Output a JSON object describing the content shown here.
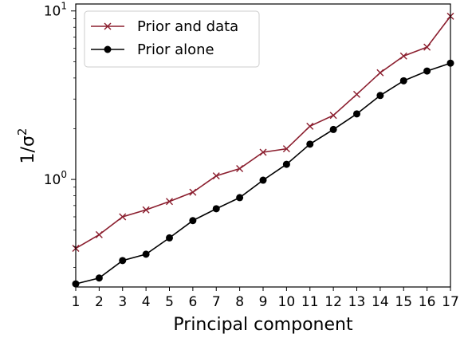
{
  "chart_data": {
    "type": "line",
    "xlabel": "Principal component",
    "ylabel": "1/σ",
    "ylabel_superscript": "2",
    "yscale": "log",
    "x": [
      1,
      2,
      3,
      4,
      5,
      6,
      7,
      8,
      9,
      10,
      11,
      12,
      13,
      14,
      15,
      16,
      17
    ],
    "xlim": [
      1,
      17
    ],
    "ylim": [
      0.23,
      11
    ],
    "x_ticks": [
      "1",
      "2",
      "3",
      "4",
      "5",
      "6",
      "7",
      "8",
      "9",
      "10",
      "11",
      "12",
      "13",
      "14",
      "15",
      "16",
      "17"
    ],
    "y_ticks": [
      {
        "base": "10",
        "exp": "0",
        "value": 1
      },
      {
        "base": "10",
        "exp": "1",
        "value": 10
      }
    ],
    "legend_position": "upper-left",
    "grid": false,
    "series": [
      {
        "name": "Prior and data",
        "color": "#8B1E2E",
        "marker": "x",
        "values": [
          0.39,
          0.47,
          0.6,
          0.66,
          0.74,
          0.84,
          1.05,
          1.16,
          1.45,
          1.52,
          2.07,
          2.4,
          3.2,
          4.3,
          5.4,
          6.1,
          9.3
        ]
      },
      {
        "name": "Prior alone",
        "color": "#000000",
        "marker": "circle",
        "values": [
          0.24,
          0.26,
          0.33,
          0.36,
          0.45,
          0.57,
          0.67,
          0.78,
          0.99,
          1.23,
          1.62,
          1.98,
          2.45,
          3.15,
          3.85,
          4.4,
          4.9
        ]
      }
    ]
  }
}
